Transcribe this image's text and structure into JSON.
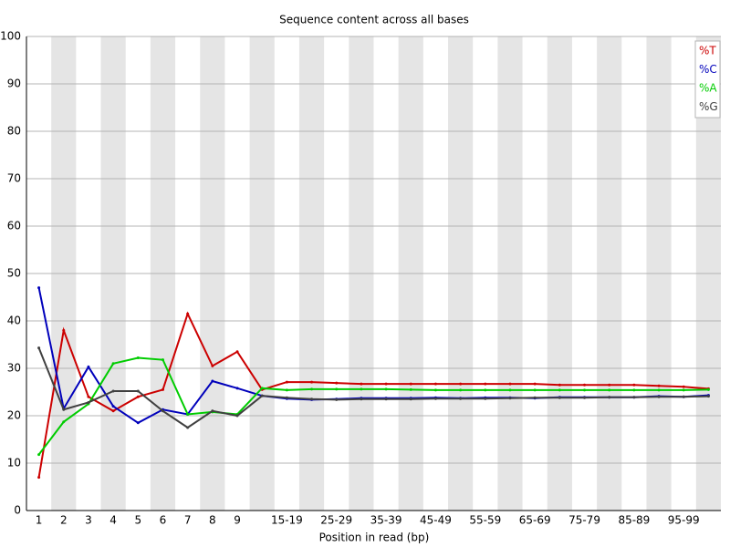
{
  "chart_data": {
    "type": "line",
    "title": "Sequence content across all bases",
    "x_label": "Position in read (bp)",
    "categories": [
      "1",
      "2",
      "3",
      "4",
      "5",
      "6",
      "7",
      "8",
      "9",
      null,
      "15-19",
      null,
      "25-29",
      null,
      "35-39",
      null,
      "45-49",
      null,
      "55-59",
      null,
      "65-69",
      null,
      "75-79",
      null,
      "85-89",
      null,
      "95-99",
      null
    ],
    "series": [
      {
        "name": "%T",
        "color": "#cc0000",
        "values": [
          7,
          38,
          24,
          21,
          24,
          25.5,
          41.5,
          30.5,
          33.5,
          25.5,
          27.1,
          27.1,
          26.9,
          26.7,
          26.7,
          26.7,
          26.7,
          26.7,
          26.7,
          26.7,
          26.7,
          26.5,
          26.5,
          26.5,
          26.5,
          26.3,
          26.1,
          25.7
        ]
      },
      {
        "name": "%C",
        "color": "#0000bb",
        "values": [
          47,
          21.5,
          30.3,
          22,
          18.5,
          21.3,
          20.3,
          27.3,
          25.8,
          24.2,
          23.6,
          23.4,
          23.5,
          23.7,
          23.7,
          23.7,
          23.8,
          23.7,
          23.8,
          23.8,
          23.7,
          23.9,
          23.9,
          23.9,
          23.9,
          24.1,
          24,
          24.3
        ]
      },
      {
        "name": "%A",
        "color": "#00cc00",
        "values": [
          11.8,
          18.7,
          22.5,
          31,
          32.2,
          31.8,
          20.3,
          20.8,
          20.3,
          25.8,
          25.4,
          25.6,
          25.6,
          25.6,
          25.6,
          25.5,
          25.4,
          25.4,
          25.4,
          25.4,
          25.4,
          25.4,
          25.4,
          25.4,
          25.4,
          25.4,
          25.4,
          25.5
        ]
      },
      {
        "name": "%G",
        "color": "#404040",
        "values": [
          34.3,
          21.3,
          22.8,
          25.2,
          25.2,
          21,
          17.5,
          21,
          20,
          24.2,
          23.8,
          23.5,
          23.4,
          23.5,
          23.5,
          23.5,
          23.6,
          23.6,
          23.6,
          23.7,
          23.8,
          23.8,
          23.8,
          23.9,
          23.9,
          24,
          24,
          24.1
        ]
      }
    ],
    "ylim": [
      0,
      100
    ],
    "yticks": [
      0,
      10,
      20,
      30,
      40,
      50,
      60,
      70,
      80,
      90,
      100
    ],
    "grid": true,
    "legend": "top-right"
  }
}
